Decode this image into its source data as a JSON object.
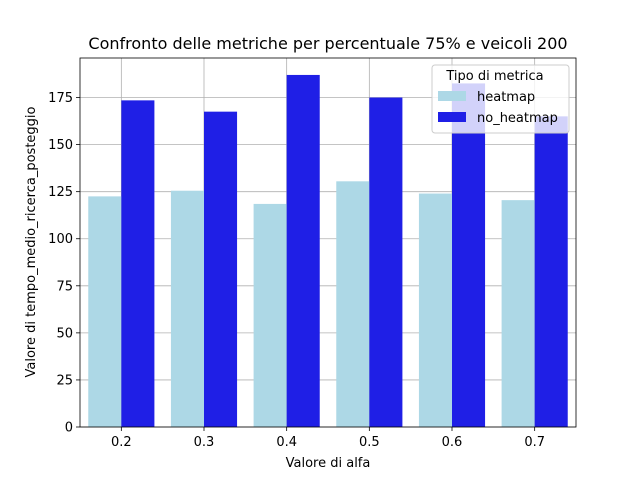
{
  "chart_data": {
    "type": "bar",
    "title": "Confronto delle metriche per percentuale 75% e veicoli 200",
    "xlabel": "Valore di alfa",
    "ylabel": "Valore di tempo_medio_ricerca_posteggio",
    "categories": [
      "0.2",
      "0.3",
      "0.4",
      "0.5",
      "0.6",
      "0.7"
    ],
    "series": [
      {
        "name": "heatmap",
        "color": "#add8e6",
        "values": [
          122.5,
          125.5,
          118.5,
          130.5,
          124.0,
          120.5
        ]
      },
      {
        "name": "no_heatmap",
        "color": "#1f1fe6",
        "values": [
          173.5,
          167.5,
          187.0,
          175.0,
          182.5,
          165.0
        ]
      }
    ],
    "ylim": [
      0,
      196
    ],
    "yticks": [
      0,
      25,
      50,
      75,
      100,
      125,
      150,
      175
    ],
    "grid": true,
    "legend": {
      "title": "Tipo di metrica",
      "position": "top-right"
    }
  }
}
